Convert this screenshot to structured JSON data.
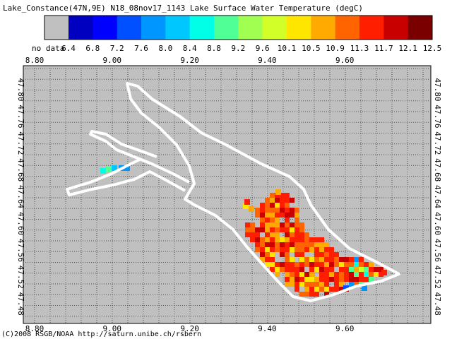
{
  "title": "Lake_Constance(47N,9E) N18_08nov17_1143 Lake Surface Water Temperature (degC)",
  "colorbar": {
    "nodata_label": "no data",
    "nodata_color": "#c0c0c0",
    "labels": [
      "6.4",
      "6.8",
      "7.2",
      "7.6",
      "8.0",
      "8.4",
      "8.8",
      "9.2",
      "9.6",
      "10.1",
      "10.5",
      "10.9",
      "11.3",
      "11.7",
      "12.1",
      "12.5"
    ],
    "colors": [
      "#0000c0",
      "#0000ff",
      "#0050ff",
      "#0096ff",
      "#00c8ff",
      "#00ffe6",
      "#50ff96",
      "#a0ff50",
      "#d2ff28",
      "#ffe600",
      "#ffaa00",
      "#ff6400",
      "#ff1e00",
      "#c80000",
      "#7a0000"
    ]
  },
  "map": {
    "xtick_labels": [
      "8.80",
      "9.00",
      "9.20",
      "9.40",
      "9.60"
    ],
    "ytick_labels": [
      "47.80",
      "47.76",
      "47.72",
      "47.68",
      "47.64",
      "47.60",
      "47.56",
      "47.52",
      "47.48"
    ]
  },
  "footer": "(C)2008 RSGB/NOAA http://saturn.unibe.ch/rsbern"
}
